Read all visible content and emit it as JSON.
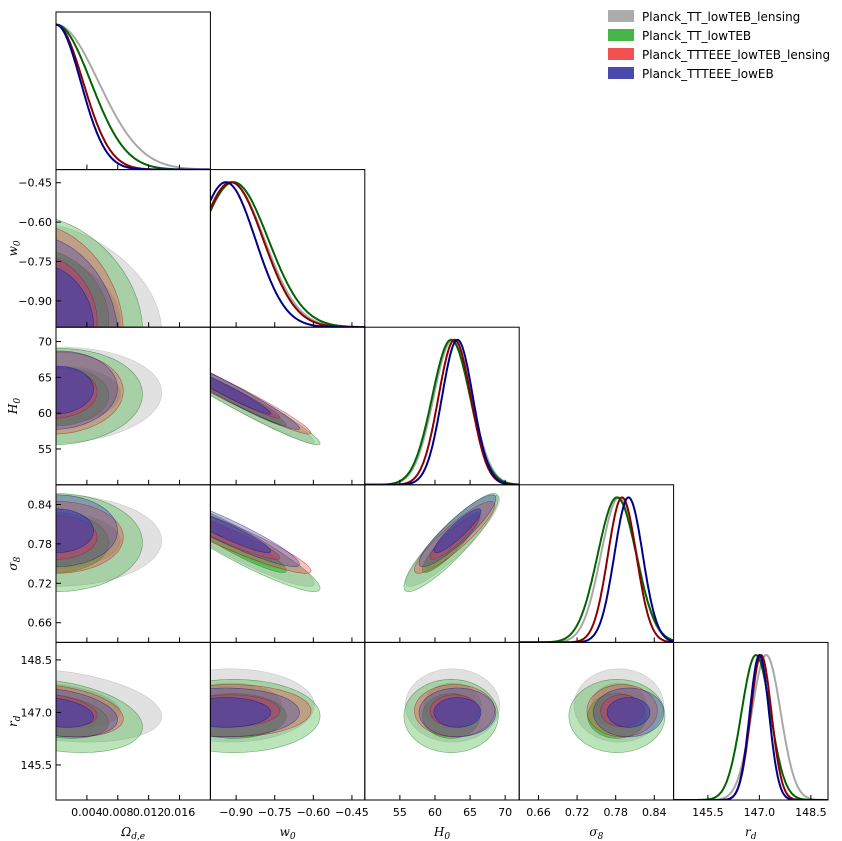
{
  "chart_data": {
    "type": "triangle",
    "title": "",
    "parameters": [
      {
        "id": "omega",
        "label": "Ω",
        "sub": "d,e",
        "range": [
          0.0,
          0.02
        ],
        "ticks": [
          0.004,
          0.008,
          0.012,
          0.016
        ],
        "tick_labels": [
          "0.004",
          "0.008",
          "0.012",
          "0.016"
        ]
      },
      {
        "id": "w0",
        "label": "w",
        "sub": "0",
        "range": [
          -1.0,
          -0.4
        ],
        "ticks": [
          -0.9,
          -0.75,
          -0.6,
          -0.45
        ],
        "tick_labels": [
          "−0.90",
          "−0.75",
          "−0.60",
          "−0.45"
        ]
      },
      {
        "id": "H0",
        "label": "H",
        "sub": "0",
        "range": [
          50,
          72
        ],
        "ticks": [
          55,
          60,
          65,
          70
        ],
        "tick_labels": [
          "55",
          "60",
          "65",
          "70"
        ]
      },
      {
        "id": "sigma8",
        "label": "σ",
        "sub": "8",
        "range": [
          0.63,
          0.87
        ],
        "ticks": [
          0.66,
          0.72,
          0.78,
          0.84
        ],
        "tick_labels": [
          "0.66",
          "0.72",
          "0.78",
          "0.84"
        ]
      },
      {
        "id": "rd",
        "label": "r",
        "sub": "d",
        "range": [
          144.5,
          149.0
        ],
        "ticks": [
          145.5,
          147.0,
          148.5
        ],
        "tick_labels": [
          "145.5",
          "147.0",
          "148.5"
        ]
      }
    ],
    "series": [
      {
        "name": "Planck_TT_lowTEB_lensing",
        "fill": "#a8a8a8",
        "line": "#a8a8a8",
        "means": {
          "omega": 0.0,
          "w0": -0.92,
          "H0": 62.5,
          "sigma8": 0.785,
          "rd": 147.2
        },
        "sigmas": {
          "omega": 0.0055,
          "w0": 0.13,
          "H0": 2.7,
          "sigma8": 0.028,
          "rd": 0.42
        }
      },
      {
        "name": "Planck_TT_lowTEB",
        "fill": "#3cb33c",
        "line": "#006400",
        "means": {
          "omega": 0.0,
          "w0": -0.91,
          "H0": 62.3,
          "sigma8": 0.782,
          "rd": 146.9
        },
        "sigmas": {
          "omega": 0.0045,
          "w0": 0.135,
          "H0": 2.7,
          "sigma8": 0.03,
          "rd": 0.42
        }
      },
      {
        "name": "Planck_TTTEEE_lowTEB_lensing",
        "fill": "#f04848",
        "line": "#8b0000",
        "means": {
          "omega": 0.0,
          "w0": -0.92,
          "H0": 62.8,
          "sigma8": 0.79,
          "rd": 147.05
        },
        "sigmas": {
          "omega": 0.0035,
          "w0": 0.125,
          "H0": 2.3,
          "sigma8": 0.022,
          "rd": 0.3
        }
      },
      {
        "name": "Planck_TTTEEE_lowEB",
        "fill": "#4040aa",
        "line": "#00008b",
        "means": {
          "omega": 0.0,
          "w0": -0.94,
          "H0": 63.2,
          "sigma8": 0.8,
          "rd": 147.0
        },
        "sigmas": {
          "omega": 0.0032,
          "w0": 0.115,
          "H0": 2.2,
          "sigma8": 0.022,
          "rd": 0.28
        }
      }
    ],
    "correlations": {
      "omega|w0": -0.3,
      "omega|H0": 0.05,
      "omega|sigma8": 0.0,
      "omega|rd": -0.3,
      "w0|H0": -0.97,
      "w0|sigma8": -0.93,
      "w0|rd": 0.0,
      "H0|sigma8": 0.9,
      "H0|rd": 0.0,
      "sigma8|rd": 0.0
    },
    "legend": {
      "position": "top-right"
    }
  }
}
